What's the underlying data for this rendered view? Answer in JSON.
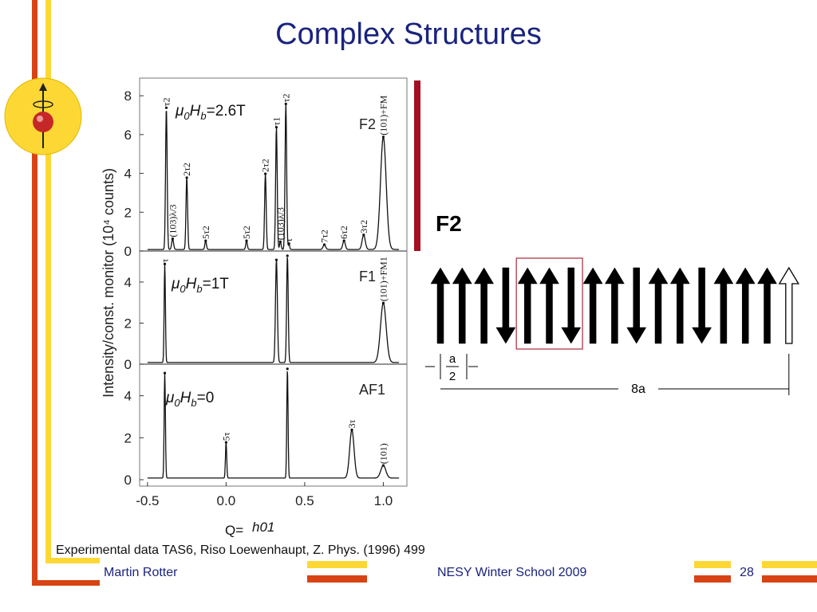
{
  "slide": {
    "title": "Complex Structures",
    "caption": "Experimental data TAS6, Riso Loewenhaupt, Z. Phys. (1996) 499",
    "footer": {
      "author": "Martin Rotter",
      "event": "NESY Winter School 2009",
      "page": "28"
    }
  },
  "chart_data": {
    "type": "line",
    "ylabel": "Intensity/const. monitor (10⁴ counts)",
    "xlabel_prefix": "Q=",
    "xlabel": "h01",
    "xlim": [
      -0.55,
      1.15
    ],
    "xticks": [
      "-0.5",
      "0.0",
      "0.5",
      "1.0"
    ],
    "panels": [
      {
        "phase": "F2",
        "field_label": "=2.6T",
        "ylim": [
          0,
          8.5
        ],
        "yticks": [
          "0",
          "2",
          "4",
          "6",
          "8"
        ],
        "peaks": [
          {
            "x": -0.38,
            "y": 7.3,
            "w": 0.005,
            "label": "τ2"
          },
          {
            "x": -0.34,
            "y": 0.55,
            "w": 0.006,
            "label": "(103)λ/3"
          },
          {
            "x": -0.25,
            "y": 3.7,
            "w": 0.005,
            "label": "2τ2"
          },
          {
            "x": -0.13,
            "y": 0.45,
            "w": 0.005,
            "label": "5τ2"
          },
          {
            "x": 0.13,
            "y": 0.45,
            "w": 0.005,
            "label": "5τ2"
          },
          {
            "x": 0.25,
            "y": 3.9,
            "w": 0.005,
            "label": "2τ2"
          },
          {
            "x": 0.32,
            "y": 6.3,
            "w": 0.005,
            "label": "τ1"
          },
          {
            "x": 0.345,
            "y": 0.4,
            "w": 0.005,
            "label": "(103)λ/3"
          },
          {
            "x": 0.38,
            "y": 7.5,
            "w": 0.005,
            "label": "τ2"
          },
          {
            "x": 0.4,
            "y": 0.3,
            "w": 0.004,
            "label": "τ"
          },
          {
            "x": 0.625,
            "y": 0.25,
            "w": 0.008,
            "label": "7τ2"
          },
          {
            "x": 0.75,
            "y": 0.45,
            "w": 0.008,
            "label": "6τ2"
          },
          {
            "x": 0.875,
            "y": 0.75,
            "w": 0.01,
            "label": "3τ2"
          },
          {
            "x": 1.0,
            "y": 5.8,
            "w": 0.018,
            "label": "(101)+FM"
          }
        ]
      },
      {
        "phase": "F1",
        "field_label": "=1T",
        "ylim": [
          0,
          5.2
        ],
        "yticks": [
          "0",
          "2",
          "4"
        ],
        "peaks": [
          {
            "x": -0.39,
            "y": 4.8,
            "w": 0.004,
            "label": "τ"
          },
          {
            "x": 0.32,
            "y": 5.0,
            "w": 0.006,
            "label": ""
          },
          {
            "x": 0.39,
            "y": 5.2,
            "w": 0.005,
            "label": ""
          },
          {
            "x": 1.0,
            "y": 2.9,
            "w": 0.018,
            "label": "(101)+FM1"
          }
        ]
      },
      {
        "phase": "AF1",
        "field_label": "=0",
        "ylim": [
          0,
          5.2
        ],
        "yticks": [
          "0",
          "2",
          "4"
        ],
        "peaks": [
          {
            "x": -0.39,
            "y": 5.0,
            "w": 0.004,
            "label": ""
          },
          {
            "x": 0.0,
            "y": 1.7,
            "w": 0.004,
            "label": "5τ"
          },
          {
            "x": 0.39,
            "y": 5.2,
            "w": 0.004,
            "label": ""
          },
          {
            "x": 0.8,
            "y": 2.3,
            "w": 0.014,
            "label": "3τ"
          },
          {
            "x": 1.0,
            "y": 0.6,
            "w": 0.016,
            "label": "(101)"
          }
        ]
      }
    ]
  },
  "field_prefix": {
    "mu": "μ",
    "zero": "0",
    "h": "H",
    "b": "b"
  },
  "spin_panel": {
    "heading": "F2",
    "spins": [
      "up",
      "up",
      "up",
      "down",
      "up",
      "up",
      "down",
      "up",
      "up",
      "down",
      "up",
      "up",
      "down",
      "up",
      "up",
      "up",
      "up-open"
    ],
    "label_a": "a",
    "label_2": "2",
    "label_period": "8a"
  },
  "colors": {
    "title": "#1a237e",
    "stripe_orange": "#d84315",
    "stripe_yellow": "#fdd835",
    "bar_red": "#a50f24",
    "box": "#b03a48"
  }
}
